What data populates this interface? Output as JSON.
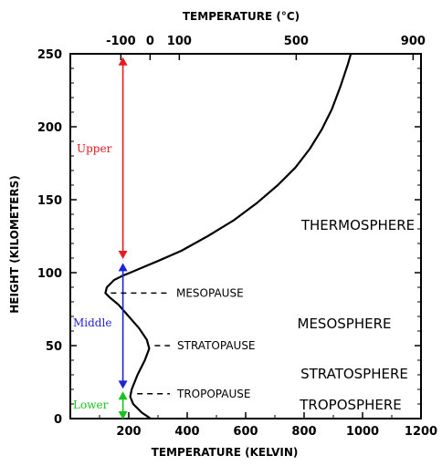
{
  "chart_data": {
    "type": "line",
    "xlabel": "TEMPERATURE  (KELVIN)",
    "ylabel": "HEIGHT  (KILOMETERS)",
    "top_axis_label": "TEMPERATURE (°C)",
    "xlim": [
      0,
      1200
    ],
    "ylim": [
      0,
      250
    ],
    "x_ticks": [
      200,
      400,
      600,
      800,
      1000,
      1200
    ],
    "x_tick_labels": [
      "200",
      "400",
      "600",
      "800",
      "1000",
      "1200"
    ],
    "y_ticks": [
      0,
      50,
      100,
      150,
      200,
      250
    ],
    "y_tick_labels": [
      "0",
      "50",
      "100",
      "150",
      "200",
      "250"
    ],
    "top_ticks": [
      {
        "label": "-100",
        "kelvin": 173
      },
      {
        "label": "0",
        "kelvin": 273
      },
      {
        "label": "100",
        "kelvin": 373
      },
      {
        "label": "500",
        "kelvin": 773
      },
      {
        "label": "900",
        "kelvin": 1173
      }
    ],
    "series": [
      {
        "points": [
          [
            275,
            0
          ],
          [
            245,
            4
          ],
          [
            215,
            10
          ],
          [
            205,
            15
          ],
          [
            210,
            20
          ],
          [
            230,
            30
          ],
          [
            255,
            40
          ],
          [
            270,
            48
          ],
          [
            262,
            54
          ],
          [
            235,
            62
          ],
          [
            200,
            70
          ],
          [
            165,
            78
          ],
          [
            135,
            83
          ],
          [
            120,
            86
          ],
          [
            125,
            90
          ],
          [
            150,
            95
          ],
          [
            180,
            98
          ],
          [
            205,
            100
          ],
          [
            240,
            103
          ],
          [
            300,
            108
          ],
          [
            380,
            115
          ],
          [
            470,
            125
          ],
          [
            560,
            136
          ],
          [
            640,
            148
          ],
          [
            710,
            160
          ],
          [
            770,
            172
          ],
          [
            820,
            185
          ],
          [
            860,
            198
          ],
          [
            895,
            212
          ],
          [
            925,
            228
          ],
          [
            950,
            243
          ],
          [
            960,
            250
          ]
        ]
      }
    ],
    "layers": [
      "THERMOSPHERE",
      "MESOSPHERE",
      "STRATOSPHERE",
      "TROPOSPHERE"
    ],
    "pauses": [
      {
        "label": "MESOPAUSE",
        "x": 120,
        "y": 86
      },
      {
        "label": "STRATOPAUSE",
        "x": 270,
        "y": 50
      },
      {
        "label": "TROPOPAUSE",
        "x": 210,
        "y": 17
      }
    ],
    "regions": [
      {
        "label": "Upper",
        "from": 110,
        "to": 247,
        "color": "#e8191f"
      },
      {
        "label": "Middle",
        "from": 21,
        "to": 106,
        "color": "#1e23d6"
      },
      {
        "label": "Lower",
        "from": 0,
        "to": 18,
        "color": "#17c41d"
      }
    ],
    "region_line_x": 180,
    "grid": false
  }
}
